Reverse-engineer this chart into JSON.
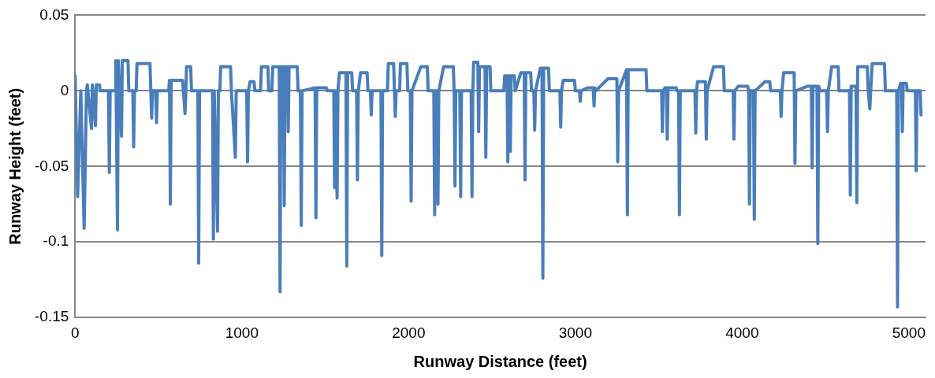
{
  "chart_data": {
    "type": "line",
    "xlabel": "Runway Distance (feet)",
    "ylabel": "Runway Height (feet)",
    "xlim": [
      0,
      5100
    ],
    "xticks": [
      0,
      1000,
      2000,
      3000,
      4000,
      5000
    ],
    "ylim": [
      -0.15,
      0.05
    ],
    "yticks": [
      -0.15,
      -0.1,
      -0.05,
      0,
      0.05
    ],
    "grid": "y",
    "legend": false,
    "marker": "none",
    "line_style": "solid",
    "series": [
      {
        "color": "#4a7ebb",
        "x": [
          0,
          15,
          34,
          54,
          68,
          73,
          98,
          103,
          122,
          127,
          146,
          150,
          200,
          205,
          210,
          240,
          244,
          254,
          259,
          278,
          283,
          317,
          322,
          346,
          351,
          356,
          366,
          371,
          449,
          454,
          459,
          464,
          483,
          488,
          493,
          561,
          566,
          571,
          576,
          644,
          649,
          659,
          664,
          668,
          693,
          698,
          736,
          741,
          746,
          824,
          829,
          834,
          854,
          859,
          868,
          873,
          932,
          937,
          961,
          966,
          1029,
          1034,
          1039,
          1049,
          1073,
          1078,
          1112,
          1117,
          1156,
          1161,
          1180,
          1185,
          1224,
          1229,
          1234,
          1249,
          1254,
          1259,
          1273,
          1278,
          1283,
          1332,
          1337,
          1351,
          1356,
          1361,
          1439,
          1444,
          1449,
          1507,
          1512,
          1551,
          1556,
          1561,
          1571,
          1576,
          1585,
          1624,
          1629,
          1634,
          1659,
          1664,
          1688,
          1693,
          1698,
          1712,
          1751,
          1756,
          1771,
          1776,
          1781,
          1834,
          1839,
          1844,
          1873,
          1878,
          1910,
          1915,
          1920,
          1925,
          1946,
          1951,
          1990,
          1995,
          2010,
          2015,
          2020,
          2073,
          2112,
          2117,
          2151,
          2156,
          2161,
          2171,
          2176,
          2181,
          2210,
          2268,
          2273,
          2278,
          2283,
          2307,
          2312,
          2317,
          2375,
          2380,
          2385,
          2390,
          2415,
          2420,
          2425,
          2458,
          2463,
          2468,
          2488,
          2493,
          2571,
          2576,
          2590,
          2595,
          2600,
          2605,
          2610,
          2615,
          2634,
          2639,
          2673,
          2693,
          2698,
          2703,
          2732,
          2737,
          2751,
          2756,
          2761,
          2790,
          2800,
          2805,
          2810,
          2839,
          2844,
          2907,
          2912,
          2917,
          2927,
          2995,
          3000,
          3024,
          3029,
          3034,
          3073,
          3107,
          3112,
          3117,
          3122,
          3195,
          3249,
          3254,
          3259,
          3307,
          3312,
          3317,
          3424,
          3429,
          3517,
          3522,
          3527,
          3537,
          3546,
          3551,
          3556,
          3605,
          3610,
          3619,
          3624,
          3629,
          3717,
          3722,
          3727,
          3732,
          3780,
          3785,
          3790,
          3829,
          3888,
          3893,
          3946,
          3951,
          3956,
          3976,
          4034,
          4039,
          4044,
          4049,
          4068,
          4073,
          4078,
          4137,
          4166,
          4171,
          4229,
          4234,
          4239,
          4249,
          4312,
          4317,
          4322,
          4390,
          4415,
          4420,
          4425,
          4449,
          4454,
          4459,
          4468,
          4507,
          4512,
          4517,
          4537,
          4576,
          4581,
          4644,
          4649,
          4654,
          4683,
          4688,
          4693,
          4751,
          4756,
          4766,
          4771,
          4780,
          4854,
          4859,
          4927,
          4932,
          4937,
          4951,
          4956,
          4961,
          4966,
          4985,
          4990,
          5039,
          5044,
          5049,
          5068,
          5073
        ],
        "values": [
          0.01,
          -0.07,
          0,
          -0.091,
          0,
          0.004,
          -0.025,
          0.004,
          -0.023,
          0.004,
          0.004,
          0,
          0,
          -0.054,
          0,
          0,
          0.02,
          -0.092,
          0.02,
          -0.03,
          0.02,
          0.02,
          0,
          0,
          -0.037,
          0,
          0,
          0.018,
          0.018,
          0,
          -0.018,
          0,
          0,
          -0.021,
          0,
          0,
          0.007,
          -0.075,
          0.007,
          0.007,
          0,
          -0.015,
          0,
          0.016,
          0.016,
          0,
          0,
          -0.114,
          0,
          0,
          -0.098,
          0,
          -0.093,
          0,
          0,
          0.016,
          0.016,
          0,
          -0.044,
          0,
          0,
          -0.047,
          0,
          0.006,
          0.006,
          0,
          0,
          0.016,
          0.016,
          0,
          0,
          0.016,
          0.016,
          -0.133,
          0.016,
          0.016,
          -0.076,
          0.016,
          0.016,
          -0.027,
          0.016,
          0.016,
          0,
          0,
          -0.089,
          0,
          0.002,
          -0.084,
          0.002,
          0.002,
          0,
          0,
          -0.064,
          0,
          -0.071,
          0,
          0.012,
          0.012,
          -0.116,
          0.012,
          0.012,
          0,
          0,
          -0.059,
          0,
          0.012,
          0.012,
          0,
          0,
          -0.016,
          0,
          0,
          -0.109,
          0,
          0,
          0.018,
          0.018,
          0,
          -0.017,
          0,
          0,
          0.018,
          0.018,
          0,
          0,
          -0.073,
          0,
          0.016,
          0.016,
          0,
          0,
          -0.082,
          0,
          0,
          -0.075,
          0,
          0.016,
          0.016,
          0,
          -0.063,
          0,
          0,
          -0.07,
          0,
          0,
          -0.07,
          0,
          0.019,
          0.019,
          -0.027,
          0.016,
          0.016,
          -0.044,
          0.016,
          0.016,
          0,
          0,
          0.01,
          0.01,
          -0.047,
          0.01,
          0.01,
          -0.04,
          0.01,
          0.01,
          0,
          0.012,
          0.012,
          -0.059,
          0.012,
          0.012,
          0,
          0,
          -0.026,
          0,
          0.015,
          0.015,
          -0.124,
          0.015,
          0.015,
          0,
          0,
          -0.024,
          0,
          0.007,
          0.007,
          0,
          0,
          -0.007,
          0,
          0.002,
          0.002,
          -0.01,
          0.002,
          0,
          0.008,
          0.008,
          -0.047,
          0,
          0.014,
          -0.082,
          0.014,
          0.014,
          0,
          0,
          -0.027,
          0,
          0.002,
          0.002,
          -0.032,
          0.002,
          0.002,
          0,
          0,
          -0.082,
          0,
          0,
          -0.028,
          0,
          0.006,
          0.006,
          -0.032,
          0,
          0.016,
          0.016,
          0,
          0,
          -0.032,
          0,
          0.003,
          0.003,
          0,
          -0.075,
          0,
          0,
          -0.085,
          0,
          0.006,
          0.006,
          0,
          0,
          -0.017,
          0,
          0.012,
          0.012,
          -0.048,
          0,
          0.003,
          0.003,
          -0.051,
          0.003,
          0.003,
          -0.101,
          0.003,
          0,
          0,
          -0.027,
          0,
          0.016,
          0.016,
          0,
          0,
          -0.069,
          0.003,
          0.003,
          -0.074,
          0.016,
          0.016,
          0,
          -0.012,
          0,
          0.018,
          0.018,
          0,
          0,
          -0.143,
          0,
          0.005,
          0.005,
          -0.027,
          0.005,
          0.005,
          0,
          0,
          -0.053,
          0,
          0,
          -0.016
        ]
      }
    ]
  }
}
